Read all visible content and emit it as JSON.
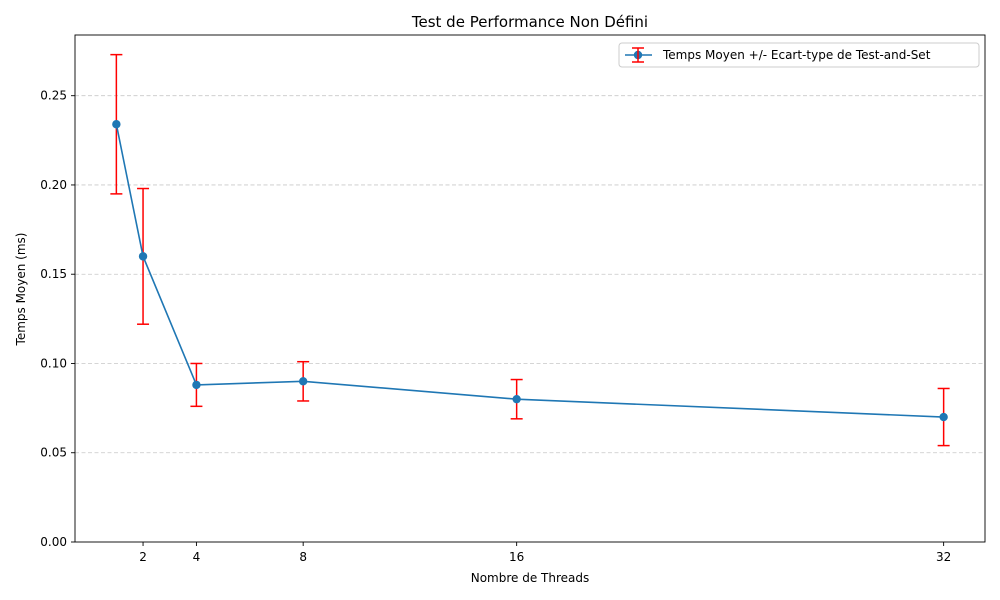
{
  "chart_data": {
    "type": "line",
    "title": "Test de Performance Non Défini",
    "xlabel": "Nombre de Threads",
    "ylabel": "Temps Moyen (ms)",
    "x": [
      1,
      2,
      4,
      8,
      16,
      32
    ],
    "x_ticks": [
      2,
      4,
      8,
      16,
      32
    ],
    "x_tick_labels": [
      "2",
      "4",
      "8",
      "16",
      "32"
    ],
    "xlim": [
      -0.55,
      33.55
    ],
    "ylim": [
      0,
      0.284
    ],
    "y_ticks": [
      0.0,
      0.05,
      0.1,
      0.15,
      0.2,
      0.25
    ],
    "y_tick_labels": [
      "0.00",
      "0.05",
      "0.10",
      "0.15",
      "0.20",
      "0.25"
    ],
    "grid": "y-dashed",
    "legend_position": "top-right",
    "series": [
      {
        "name": "Temps Moyen +/- Ecart-type de Test-and-Set",
        "values": [
          0.234,
          0.16,
          0.088,
          0.09,
          0.08,
          0.07
        ],
        "error": [
          0.039,
          0.038,
          0.012,
          0.011,
          0.011,
          0.016
        ],
        "line_color": "#1f77b4",
        "marker_color": "#1f77b4",
        "error_color": "#ff0000"
      }
    ]
  }
}
